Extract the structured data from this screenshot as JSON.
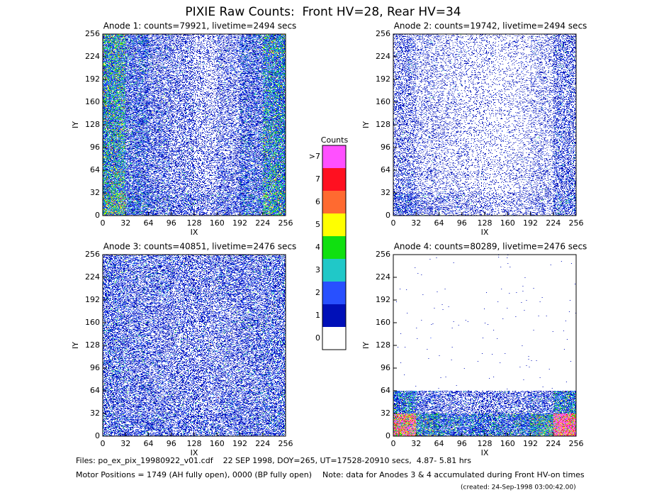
{
  "title": "PIXIE Raw Counts:  Front HV=28, Rear HV=34",
  "chart_data": [
    {
      "type": "heatmap",
      "title": "Anode 1: counts=79921, livetime=2494 secs",
      "xlabel": "IX",
      "ylabel": "IY",
      "xlim": [
        0,
        256
      ],
      "ylim": [
        0,
        256
      ],
      "xticks": [
        0,
        32,
        64,
        96,
        128,
        160,
        192,
        224,
        256
      ],
      "yticks": [
        0,
        32,
        64,
        96,
        128,
        160,
        192,
        224,
        256
      ],
      "values": [
        [
          3.0,
          1.4,
          0.9,
          0.8,
          0.6,
          0.8,
          1.2,
          2.6
        ],
        [
          2.4,
          1.0,
          0.7,
          0.6,
          0.4,
          0.6,
          1.0,
          2.2
        ],
        [
          2.2,
          0.9,
          0.7,
          0.5,
          0.35,
          0.5,
          0.9,
          2.0
        ],
        [
          2.3,
          1.0,
          0.7,
          0.5,
          0.35,
          0.5,
          0.9,
          2.1
        ],
        [
          2.4,
          1.0,
          0.7,
          0.5,
          0.35,
          0.5,
          0.9,
          2.0
        ],
        [
          2.3,
          0.9,
          0.6,
          0.5,
          0.3,
          0.5,
          0.8,
          1.9
        ],
        [
          2.4,
          1.0,
          0.6,
          0.5,
          0.3,
          0.5,
          0.9,
          2.0
        ],
        [
          2.6,
          1.1,
          0.7,
          0.5,
          0.3,
          0.5,
          1.0,
          2.2
        ]
      ]
    },
    {
      "type": "heatmap",
      "title": "Anode 2: counts=19742, livetime=2494 secs",
      "xlabel": "IX",
      "ylabel": "IY",
      "xlim": [
        0,
        256
      ],
      "ylim": [
        0,
        256
      ],
      "xticks": [
        0,
        32,
        64,
        96,
        128,
        160,
        192,
        224,
        256
      ],
      "yticks": [
        0,
        32,
        64,
        96,
        128,
        160,
        192,
        224,
        256
      ],
      "values": [
        [
          0.9,
          0.5,
          0.4,
          0.35,
          0.3,
          0.3,
          0.4,
          0.8
        ],
        [
          0.5,
          0.3,
          0.25,
          0.2,
          0.15,
          0.2,
          0.3,
          0.6
        ],
        [
          0.45,
          0.25,
          0.2,
          0.15,
          0.12,
          0.15,
          0.25,
          0.55
        ],
        [
          0.45,
          0.25,
          0.2,
          0.15,
          0.12,
          0.15,
          0.25,
          0.55
        ],
        [
          0.45,
          0.25,
          0.2,
          0.15,
          0.12,
          0.15,
          0.25,
          0.55
        ],
        [
          0.45,
          0.25,
          0.2,
          0.15,
          0.12,
          0.15,
          0.25,
          0.55
        ],
        [
          0.45,
          0.25,
          0.2,
          0.15,
          0.12,
          0.15,
          0.25,
          0.55
        ],
        [
          0.5,
          0.3,
          0.2,
          0.15,
          0.12,
          0.15,
          0.3,
          0.6
        ]
      ]
    },
    {
      "type": "heatmap",
      "title": "Anode 3: counts=40851, livetime=2476 secs",
      "xlabel": "IX",
      "ylabel": "IY",
      "xlim": [
        0,
        256
      ],
      "ylim": [
        0,
        256
      ],
      "xticks": [
        0,
        32,
        64,
        96,
        128,
        160,
        192,
        224,
        256
      ],
      "yticks": [
        0,
        32,
        64,
        96,
        128,
        160,
        192,
        224,
        256
      ],
      "values": [
        [
          0.9,
          0.8,
          0.8,
          0.7,
          0.7,
          0.7,
          0.8,
          0.9
        ],
        [
          0.8,
          0.7,
          0.7,
          0.6,
          0.6,
          0.7,
          0.7,
          0.8
        ],
        [
          0.8,
          0.7,
          0.6,
          0.6,
          0.6,
          0.6,
          0.7,
          0.8
        ],
        [
          0.8,
          0.7,
          0.6,
          0.6,
          0.55,
          0.6,
          0.7,
          0.8
        ],
        [
          0.8,
          0.7,
          0.6,
          0.6,
          0.55,
          0.6,
          0.7,
          0.8
        ],
        [
          0.8,
          0.7,
          0.6,
          0.6,
          0.6,
          0.6,
          0.7,
          0.8
        ],
        [
          0.8,
          0.7,
          0.7,
          0.6,
          0.6,
          0.7,
          0.7,
          0.8
        ],
        [
          0.8,
          0.7,
          0.7,
          0.7,
          0.6,
          0.7,
          0.7,
          0.8
        ]
      ]
    },
    {
      "type": "heatmap",
      "title": "Anode 4: counts=80289, livetime=2476 secs",
      "xlabel": "IX",
      "ylabel": "IY",
      "xlim": [
        0,
        256
      ],
      "ylim": [
        0,
        256
      ],
      "xticks": [
        0,
        32,
        64,
        96,
        128,
        160,
        192,
        224,
        256
      ],
      "yticks": [
        0,
        32,
        64,
        96,
        128,
        160,
        192,
        224,
        256
      ],
      "values": [
        [
          6,
          2.2,
          1.6,
          1.5,
          1.5,
          1.6,
          2.5,
          7
        ],
        [
          1.8,
          0.8,
          0.6,
          0.6,
          0.6,
          0.6,
          0.8,
          1.9
        ],
        [
          0.002,
          0.002,
          0.002,
          0.002,
          0.002,
          0.002,
          0.002,
          0.002
        ],
        [
          0.002,
          0.002,
          0.002,
          0.002,
          0.002,
          0.002,
          0.002,
          0.002
        ],
        [
          0.002,
          0.002,
          0.002,
          0.002,
          0.002,
          0.002,
          0.002,
          0.002
        ],
        [
          0.002,
          0.002,
          0.002,
          0.002,
          0.002,
          0.002,
          0.002,
          0.002
        ],
        [
          0.002,
          0.002,
          0.002,
          0.002,
          0.002,
          0.002,
          0.002,
          0.002
        ],
        [
          0.002,
          0.002,
          0.002,
          0.002,
          0.002,
          0.002,
          0.002,
          0.002
        ]
      ]
    }
  ],
  "colorbar": {
    "title": "Counts",
    "ticks": [
      0,
      1,
      2,
      3,
      4,
      5,
      6,
      7,
      {
        "value": 8,
        "label": ">7"
      }
    ],
    "colors": [
      "#ffffff",
      "#0010b8",
      "#2850ff",
      "#20c8c8",
      "#10e010",
      "#ffff00",
      "#ff6a30",
      "#ff1020",
      "#ff50ff"
    ]
  },
  "footer": {
    "files": "Files: po_ex_pix_19980922_v01.cdf    22 SEP 1998, DOY=265, UT=17528-20910 secs,  4.87- 5.81 hrs",
    "motor": "Motor Positions = 1749 (AH fully open), 0000 (BP fully open)",
    "note": "Note: data for Anodes 3 & 4 accumulated during Front HV-on times",
    "created": "(created: 24-Sep-1998 03:00:42.00)"
  }
}
